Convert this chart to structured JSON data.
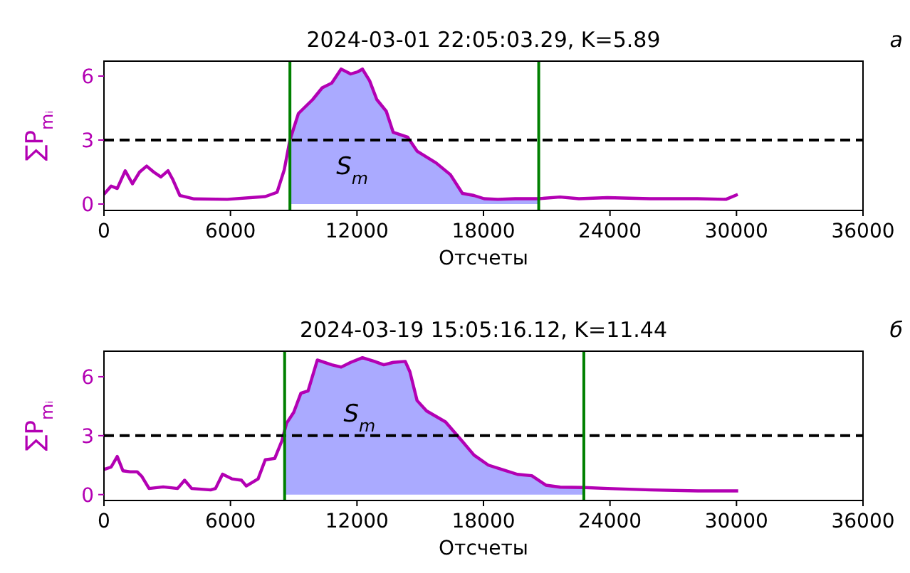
{
  "chart_data": [
    {
      "type": "line",
      "title": "2024-03-01 22:05:03.29, K=5.89",
      "xlabel": "Отсчеты",
      "ylabel": "∑P$_{mᵢ}$",
      "xlim": [
        0,
        36000
      ],
      "xticks": [
        0,
        6000,
        12000,
        18000,
        24000,
        30000,
        36000
      ],
      "ylim": [
        -0.3,
        6.7
      ],
      "yticks": [
        0,
        3,
        6
      ],
      "grid": false,
      "series": [
        {
          "type": "area",
          "color": "#aaaaff",
          "x": [
            8820,
            9220,
            9900,
            10350,
            10800,
            11250,
            11700,
            12040,
            12260,
            12600,
            12940,
            13390,
            13720,
            14400,
            14850,
            15750,
            16430,
            17000,
            17550,
            18030,
            18680,
            19500,
            20620
          ],
          "values": [
            3.0,
            4.24,
            4.9,
            5.45,
            5.67,
            6.33,
            6.1,
            6.2,
            6.33,
            5.78,
            4.9,
            4.35,
            3.36,
            3.14,
            2.48,
            1.93,
            1.38,
            0.5,
            0.4,
            0.25,
            0.22,
            0.25,
            0.25
          ]
        },
        {
          "color": "#b300b3",
          "x": [
            0,
            340,
            630,
            1010,
            1350,
            1690,
            2025,
            2360,
            2700,
            3040,
            3260,
            3600,
            4280,
            5850,
            7650,
            8210,
            8550,
            8820,
            9220,
            9900,
            10350,
            10800,
            11250,
            11700,
            12040,
            12260,
            12600,
            12940,
            13390,
            13720,
            14400,
            14850,
            15750,
            16430,
            17000,
            17550,
            18030,
            18680,
            19500,
            20620,
            21630,
            22530,
            23880,
            25900,
            28150,
            29500,
            30060
          ],
          "values": [
            0.46,
            0.84,
            0.73,
            1.56,
            0.95,
            1.5,
            1.78,
            1.5,
            1.27,
            1.56,
            1.16,
            0.4,
            0.24,
            0.22,
            0.35,
            0.55,
            1.6,
            3.0,
            4.24,
            4.9,
            5.45,
            5.67,
            6.33,
            6.1,
            6.2,
            6.33,
            5.78,
            4.9,
            4.35,
            3.36,
            3.14,
            2.48,
            1.93,
            1.38,
            0.5,
            0.4,
            0.25,
            0.22,
            0.25,
            0.25,
            0.33,
            0.25,
            0.3,
            0.25,
            0.25,
            0.22,
            0.45
          ]
        }
      ],
      "ref_lines": [
        {
          "axis": "y",
          "value": 3,
          "color": "#000000",
          "line_style": "dashed"
        },
        {
          "axis": "x",
          "value": 8820,
          "color": "#008000",
          "line_style": "solid"
        },
        {
          "axis": "x",
          "value": 20620,
          "color": "#008000",
          "line_style": "solid"
        }
      ],
      "annotations": [
        "S$_{m}$",
        "а"
      ]
    },
    {
      "type": "line",
      "title": "2024-03-19 15:05:16.12, K=11.44",
      "xlabel": "Отсчеты",
      "ylabel": "∑P$_{mᵢ}$",
      "xlim": [
        0,
        36000
      ],
      "xticks": [
        0,
        6000,
        12000,
        18000,
        24000,
        30000,
        36000
      ],
      "ylim": [
        -0.3,
        7.3
      ],
      "yticks": [
        0,
        3,
        6
      ],
      "grid": false,
      "series": [
        {
          "type": "area",
          "color": "#aaaaff",
          "x": [
            8570,
            8660,
            9000,
            9340,
            9680,
            10120,
            10800,
            11250,
            11700,
            12260,
            12830,
            13270,
            13720,
            14290,
            14510,
            14850,
            15300,
            16200,
            16880,
            17550,
            18230,
            18930,
            19610,
            20290,
            20960,
            21640,
            22760
          ],
          "values": [
            3.3,
            3.63,
            4.19,
            5.16,
            5.28,
            6.85,
            6.61,
            6.49,
            6.73,
            6.97,
            6.78,
            6.61,
            6.73,
            6.78,
            6.25,
            4.79,
            4.26,
            3.7,
            2.86,
            2.01,
            1.5,
            1.26,
            1.03,
            0.96,
            0.48,
            0.38,
            0.36
          ]
        },
        {
          "color": "#b300b3",
          "x": [
            0,
            340,
            630,
            900,
            1240,
            1575,
            1800,
            2140,
            2810,
            3490,
            3825,
            4160,
            5060,
            5290,
            5625,
            6075,
            6525,
            6750,
            7310,
            7650,
            8100,
            8440,
            8660,
            9000,
            9340,
            9680,
            10120,
            10800,
            11250,
            11700,
            12260,
            12830,
            13270,
            13720,
            14290,
            14510,
            14850,
            15300,
            16200,
            16880,
            17550,
            18230,
            18930,
            19610,
            20290,
            20960,
            21640,
            22760,
            23890,
            25920,
            28170,
            30080
          ],
          "values": [
            1.28,
            1.4,
            1.94,
            1.21,
            1.16,
            1.16,
            0.92,
            0.31,
            0.39,
            0.31,
            0.73,
            0.31,
            0.24,
            0.31,
            1.04,
            0.8,
            0.73,
            0.44,
            0.8,
            1.77,
            1.84,
            2.74,
            3.63,
            4.19,
            5.16,
            5.28,
            6.85,
            6.61,
            6.49,
            6.73,
            6.97,
            6.78,
            6.61,
            6.73,
            6.78,
            6.25,
            4.79,
            4.26,
            3.7,
            2.86,
            2.01,
            1.5,
            1.26,
            1.03,
            0.96,
            0.48,
            0.38,
            0.36,
            0.31,
            0.24,
            0.19,
            0.19
          ]
        }
      ],
      "ref_lines": [
        {
          "axis": "y",
          "value": 3,
          "color": "#000000",
          "line_style": "dashed"
        },
        {
          "axis": "x",
          "value": 8570,
          "color": "#008000",
          "line_style": "solid"
        },
        {
          "axis": "x",
          "value": 22760,
          "color": "#008000",
          "line_style": "solid"
        }
      ],
      "annotations": [
        "S$_{m}$",
        "б"
      ]
    }
  ]
}
